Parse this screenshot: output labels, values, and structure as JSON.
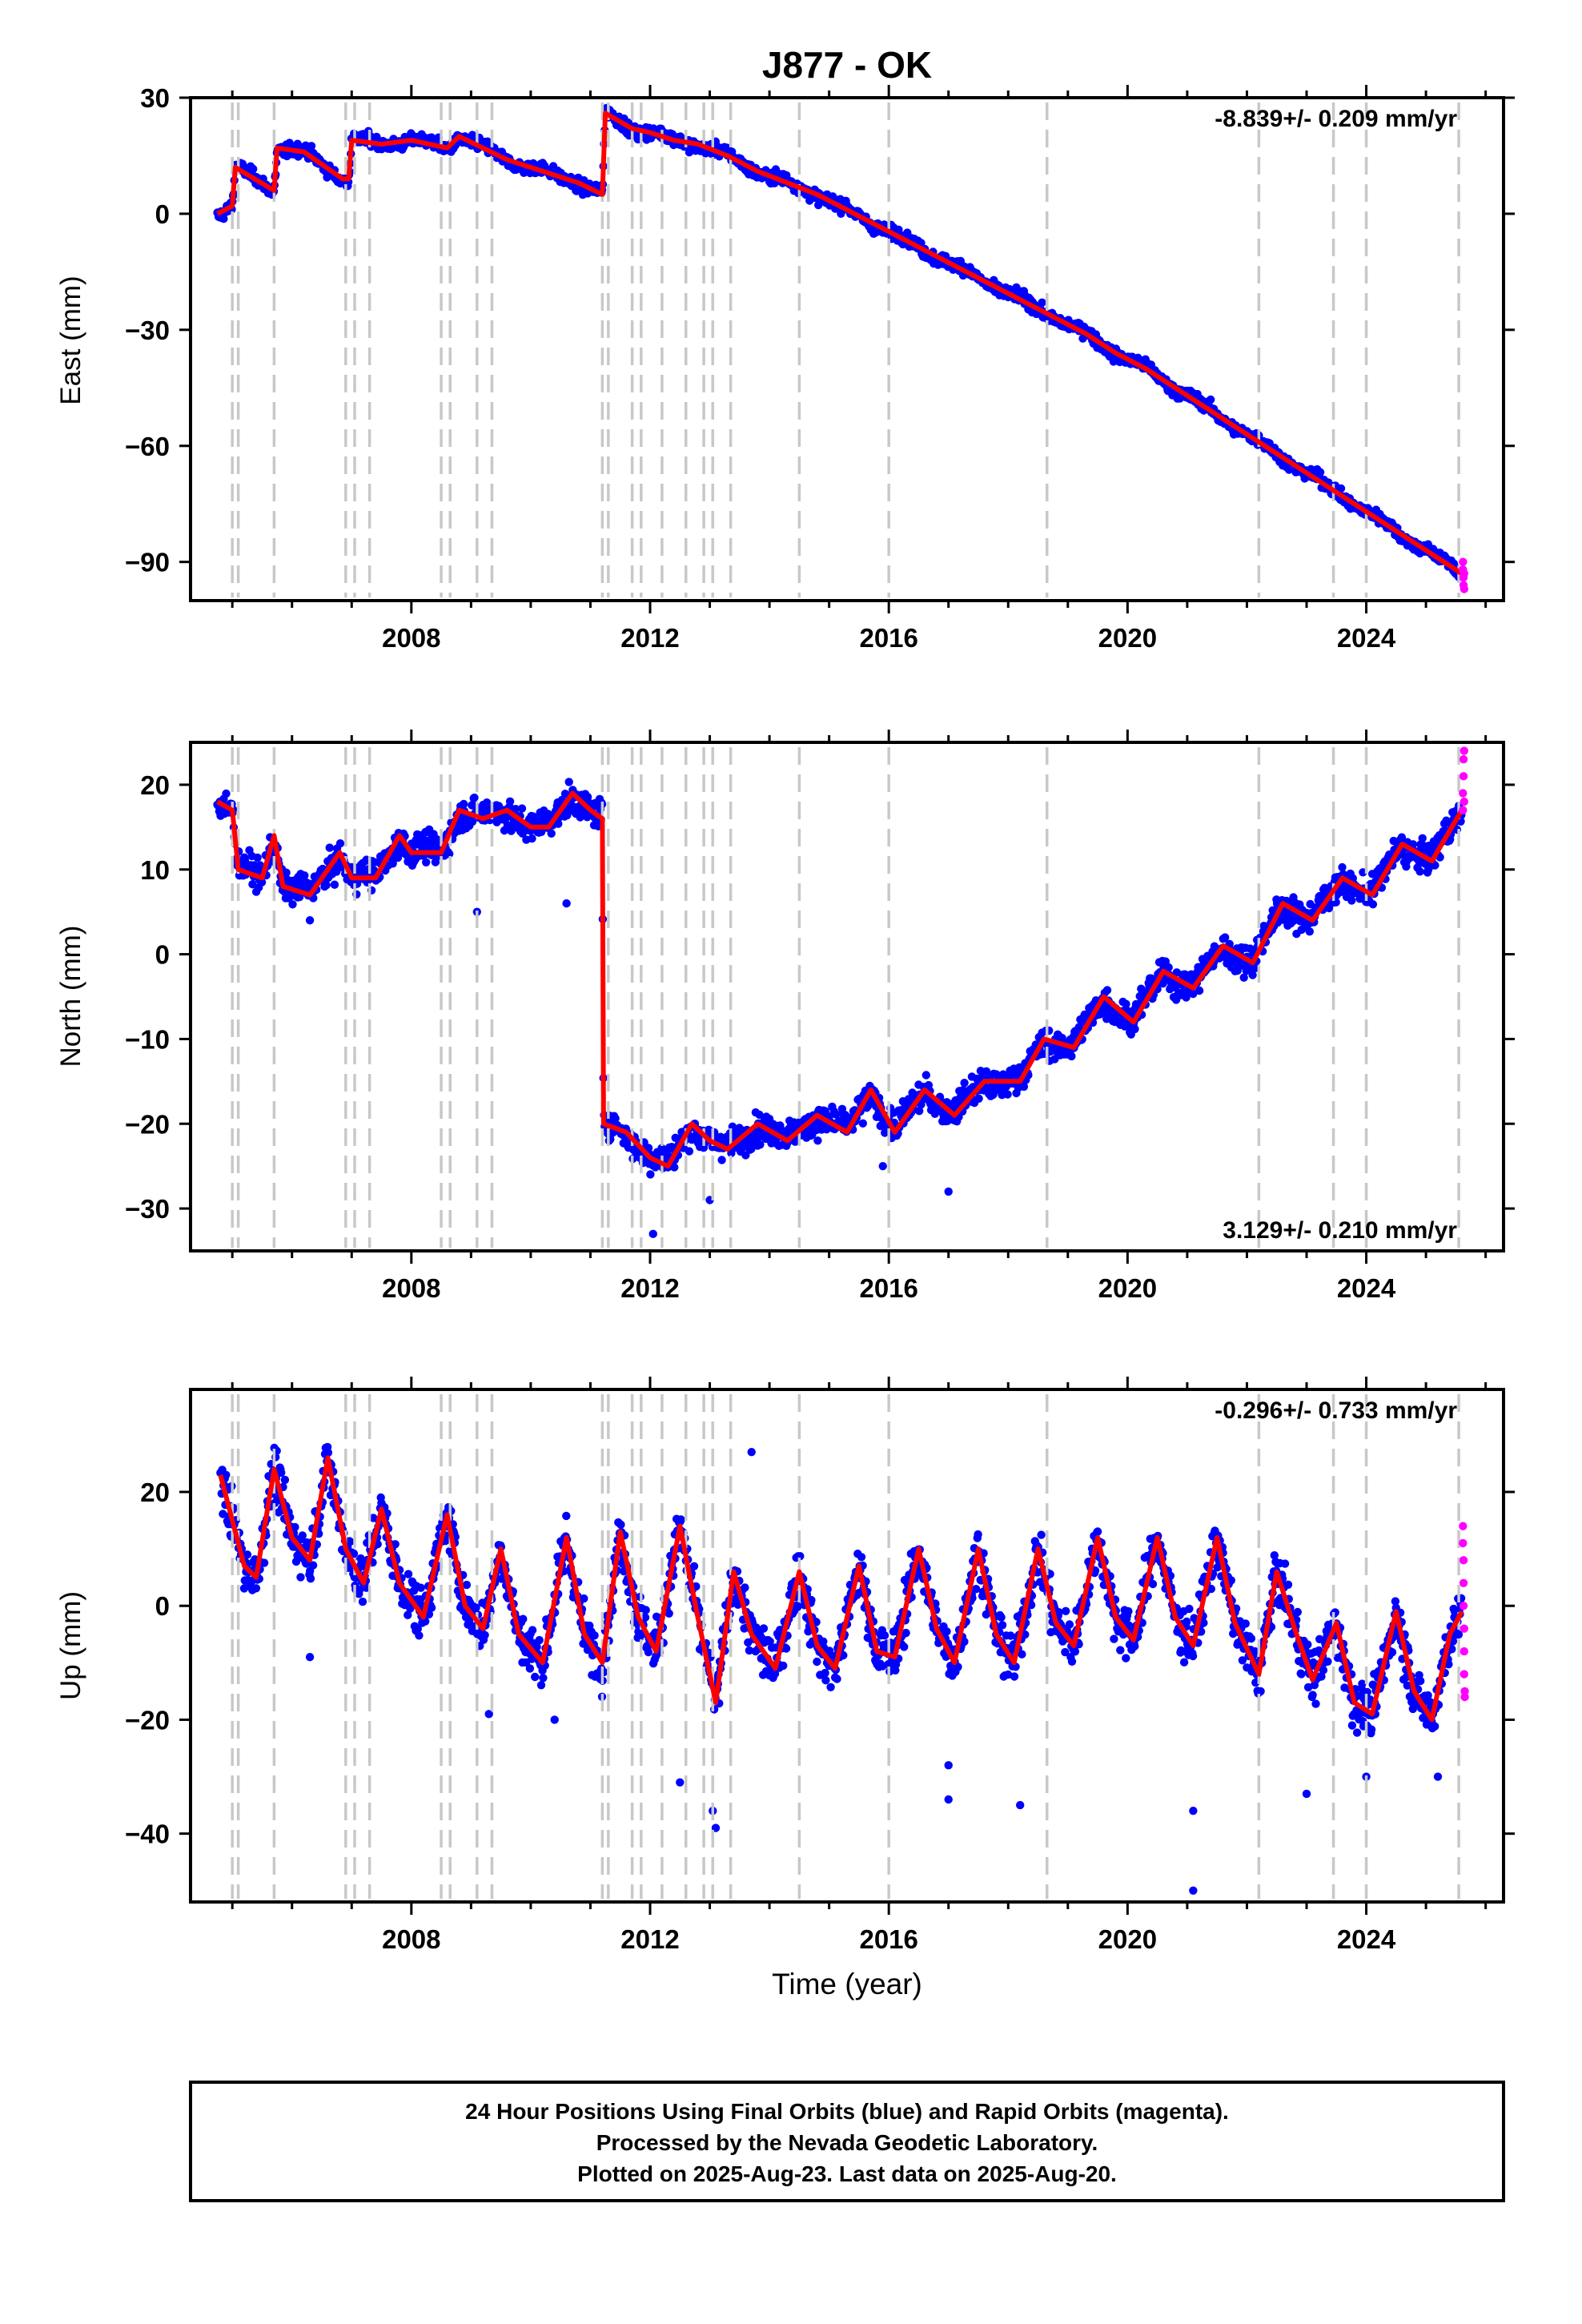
{
  "title": "J877 - OK",
  "colors": {
    "final": "#0000ff",
    "rapid": "#ff00ff",
    "model": "#ff0000",
    "event": "#c8c8c8"
  },
  "caption": {
    "line1": "24 Hour Positions Using Final Orbits (blue) and Rapid Orbits (magenta).",
    "line2": "Processed by the Nevada Geodetic Laboratory.",
    "line3": "Plotted on 2025-Aug-23. Last data on 2025-Aug-20."
  },
  "xlabel": "Time (year)",
  "xlim": [
    2004.3,
    2026.3
  ],
  "xticks": [
    2008,
    2012,
    2016,
    2020,
    2024
  ],
  "event_lines": [
    2005.0,
    2005.1,
    2005.7,
    2006.9,
    2007.05,
    2007.3,
    2008.5,
    2008.65,
    2009.1,
    2009.35,
    2011.2,
    2011.3,
    2011.7,
    2011.85,
    2012.2,
    2012.6,
    2012.9,
    2013.05,
    2013.35,
    2014.5,
    2016.0,
    2018.65,
    2022.2,
    2023.45,
    2024.0,
    2025.55
  ],
  "chart_data": [
    {
      "type": "scatter",
      "component": "east",
      "ylabel": "East (mm)",
      "ylim": [
        -100,
        30
      ],
      "yticks": [
        30,
        0,
        -30,
        -60,
        -90
      ],
      "rate_label": "-8.839+/- 0.209 mm/yr",
      "rate_position": "top-right",
      "noise_mm": 1.6,
      "model": [
        [
          2004.75,
          0
        ],
        [
          2005.0,
          2
        ],
        [
          2005.05,
          12
        ],
        [
          2005.7,
          6
        ],
        [
          2005.75,
          17
        ],
        [
          2006.2,
          16
        ],
        [
          2006.85,
          9
        ],
        [
          2006.95,
          9
        ],
        [
          2007.0,
          19
        ],
        [
          2007.5,
          18
        ],
        [
          2008.0,
          19
        ],
        [
          2008.6,
          17
        ],
        [
          2008.8,
          20
        ],
        [
          2009.2,
          17
        ],
        [
          2009.6,
          14
        ],
        [
          2010.0,
          12
        ],
        [
          2010.4,
          10
        ],
        [
          2010.8,
          8
        ],
        [
          2011.2,
          5
        ],
        [
          2011.25,
          26
        ],
        [
          2011.7,
          22
        ],
        [
          2012.0,
          21
        ],
        [
          2012.4,
          19
        ],
        [
          2012.8,
          18
        ],
        [
          2013.3,
          15
        ],
        [
          2013.8,
          11
        ],
        [
          2014.3,
          8
        ],
        [
          2014.8,
          5
        ],
        [
          2015.3,
          1
        ],
        [
          2015.8,
          -3
        ],
        [
          2016.3,
          -7
        ],
        [
          2016.8,
          -11
        ],
        [
          2017.3,
          -15
        ],
        [
          2017.8,
          -19
        ],
        [
          2018.3,
          -23
        ],
        [
          2018.8,
          -27
        ],
        [
          2019.3,
          -31
        ],
        [
          2019.8,
          -36
        ],
        [
          2020.3,
          -40
        ],
        [
          2020.8,
          -45
        ],
        [
          2021.3,
          -50
        ],
        [
          2021.8,
          -55
        ],
        [
          2022.3,
          -60
        ],
        [
          2022.8,
          -65
        ],
        [
          2023.3,
          -70
        ],
        [
          2023.8,
          -75
        ],
        [
          2024.3,
          -80
        ],
        [
          2024.8,
          -85
        ],
        [
          2025.3,
          -90
        ],
        [
          2025.6,
          -93
        ]
      ],
      "seasonal_amp": 1.5,
      "outliers": [],
      "rapid": [
        [
          2025.62,
          -90
        ],
        [
          2025.62,
          -92
        ],
        [
          2025.63,
          -94
        ],
        [
          2025.63,
          -96
        ],
        [
          2025.64,
          -97
        ],
        [
          2025.64,
          -93
        ]
      ]
    },
    {
      "type": "scatter",
      "component": "north",
      "ylabel": "North (mm)",
      "ylim": [
        -35,
        25
      ],
      "yticks": [
        20,
        10,
        0,
        -10,
        -20,
        -30
      ],
      "rate_label": "3.129+/- 0.210 mm/yr",
      "rate_position": "bottom-right",
      "noise_mm": 1.7,
      "model": [
        [
          2004.75,
          18
        ],
        [
          2005.0,
          17
        ],
        [
          2005.1,
          10
        ],
        [
          2005.5,
          9
        ],
        [
          2005.7,
          14
        ],
        [
          2005.85,
          8
        ],
        [
          2006.3,
          7
        ],
        [
          2006.8,
          12
        ],
        [
          2007.0,
          9
        ],
        [
          2007.4,
          9
        ],
        [
          2007.8,
          14
        ],
        [
          2008.0,
          12
        ],
        [
          2008.5,
          12
        ],
        [
          2008.8,
          17
        ],
        [
          2009.2,
          16
        ],
        [
          2009.6,
          17
        ],
        [
          2010.0,
          15
        ],
        [
          2010.3,
          15
        ],
        [
          2010.7,
          19
        ],
        [
          2011.0,
          17
        ],
        [
          2011.2,
          16
        ],
        [
          2011.22,
          -20
        ],
        [
          2011.6,
          -21
        ],
        [
          2012.0,
          -24
        ],
        [
          2012.3,
          -25
        ],
        [
          2012.7,
          -20
        ],
        [
          2013.0,
          -22
        ],
        [
          2013.3,
          -23
        ],
        [
          2013.8,
          -20
        ],
        [
          2014.3,
          -22
        ],
        [
          2014.8,
          -19
        ],
        [
          2015.3,
          -21
        ],
        [
          2015.7,
          -16
        ],
        [
          2016.1,
          -21
        ],
        [
          2016.6,
          -16
        ],
        [
          2017.1,
          -19
        ],
        [
          2017.6,
          -15
        ],
        [
          2018.2,
          -15
        ],
        [
          2018.6,
          -10
        ],
        [
          2019.1,
          -11
        ],
        [
          2019.6,
          -5
        ],
        [
          2020.1,
          -8
        ],
        [
          2020.6,
          -2
        ],
        [
          2021.1,
          -4
        ],
        [
          2021.6,
          1
        ],
        [
          2022.1,
          -1
        ],
        [
          2022.6,
          6
        ],
        [
          2023.1,
          4
        ],
        [
          2023.6,
          9
        ],
        [
          2024.1,
          7
        ],
        [
          2024.6,
          13
        ],
        [
          2025.1,
          11
        ],
        [
          2025.6,
          17
        ]
      ],
      "seasonal_amp": 1.2,
      "outliers": [
        [
          2012.05,
          -33
        ],
        [
          2013.0,
          -29
        ],
        [
          2015.9,
          -25
        ],
        [
          2017.0,
          -28
        ],
        [
          2009.1,
          5
        ],
        [
          2010.6,
          6
        ],
        [
          2006.3,
          4
        ]
      ],
      "rapid": [
        [
          2025.62,
          17
        ],
        [
          2025.62,
          19
        ],
        [
          2025.63,
          21
        ],
        [
          2025.63,
          23
        ],
        [
          2025.64,
          24
        ],
        [
          2025.64,
          18
        ]
      ]
    },
    {
      "type": "scatter",
      "component": "up",
      "ylabel": "Up (mm)",
      "ylim": [
        -52,
        38
      ],
      "yticks": [
        20,
        0,
        -20,
        -40
      ],
      "rate_label": "-0.296+/- 0.733 mm/yr",
      "rate_position": "top-right",
      "noise_mm": 4.5,
      "model": [
        [
          2004.8,
          23
        ],
        [
          2005.0,
          15
        ],
        [
          2005.2,
          7
        ],
        [
          2005.4,
          5
        ],
        [
          2005.7,
          24
        ],
        [
          2006.0,
          12
        ],
        [
          2006.3,
          8
        ],
        [
          2006.6,
          26
        ],
        [
          2006.9,
          10
        ],
        [
          2007.2,
          4
        ],
        [
          2007.5,
          17
        ],
        [
          2007.8,
          4
        ],
        [
          2008.2,
          -2
        ],
        [
          2008.6,
          16
        ],
        [
          2008.9,
          0
        ],
        [
          2009.2,
          -4
        ],
        [
          2009.5,
          10
        ],
        [
          2009.8,
          -5
        ],
        [
          2010.2,
          -10
        ],
        [
          2010.6,
          12
        ],
        [
          2010.9,
          -5
        ],
        [
          2011.2,
          -10
        ],
        [
          2011.5,
          13
        ],
        [
          2011.8,
          -2
        ],
        [
          2012.1,
          -8
        ],
        [
          2012.5,
          14
        ],
        [
          2012.8,
          -2
        ],
        [
          2013.1,
          -17
        ],
        [
          2013.4,
          6
        ],
        [
          2013.7,
          -5
        ],
        [
          2014.1,
          -11
        ],
        [
          2014.5,
          6
        ],
        [
          2014.8,
          -7
        ],
        [
          2015.1,
          -11
        ],
        [
          2015.5,
          7
        ],
        [
          2015.8,
          -8
        ],
        [
          2016.1,
          -9
        ],
        [
          2016.5,
          10
        ],
        [
          2016.8,
          -4
        ],
        [
          2017.1,
          -10
        ],
        [
          2017.5,
          10
        ],
        [
          2017.8,
          -5
        ],
        [
          2018.1,
          -10
        ],
        [
          2018.5,
          10
        ],
        [
          2018.8,
          -3
        ],
        [
          2019.1,
          -7
        ],
        [
          2019.5,
          12
        ],
        [
          2019.8,
          -2
        ],
        [
          2020.1,
          -6
        ],
        [
          2020.5,
          12
        ],
        [
          2020.8,
          -2
        ],
        [
          2021.1,
          -7
        ],
        [
          2021.5,
          12
        ],
        [
          2021.8,
          -3
        ],
        [
          2022.2,
          -12
        ],
        [
          2022.5,
          6
        ],
        [
          2022.8,
          -4
        ],
        [
          2023.1,
          -13
        ],
        [
          2023.5,
          -3
        ],
        [
          2023.8,
          -17
        ],
        [
          2024.1,
          -19
        ],
        [
          2024.5,
          -1
        ],
        [
          2024.8,
          -15
        ],
        [
          2025.1,
          -20
        ],
        [
          2025.4,
          -5
        ],
        [
          2025.6,
          -1
        ]
      ],
      "seasonal_amp": 0,
      "outliers": [
        [
          2006.3,
          -9
        ],
        [
          2013.05,
          -36
        ],
        [
          2013.1,
          -39
        ],
        [
          2013.7,
          27
        ],
        [
          2012.5,
          -31
        ],
        [
          2017.0,
          -28
        ],
        [
          2017.0,
          -34
        ],
        [
          2018.2,
          -35
        ],
        [
          2021.1,
          -50
        ],
        [
          2021.1,
          -36
        ],
        [
          2023.0,
          -33
        ],
        [
          2024.0,
          -30
        ],
        [
          2025.2,
          -30
        ],
        [
          2009.3,
          -19
        ],
        [
          2010.4,
          -20
        ]
      ],
      "rapid": [
        [
          2025.62,
          14
        ],
        [
          2025.62,
          11
        ],
        [
          2025.63,
          8
        ],
        [
          2025.63,
          4
        ],
        [
          2025.63,
          0
        ],
        [
          2025.64,
          -4
        ],
        [
          2025.64,
          -8
        ],
        [
          2025.64,
          -12
        ],
        [
          2025.65,
          -15
        ],
        [
          2025.65,
          -16
        ]
      ]
    }
  ]
}
